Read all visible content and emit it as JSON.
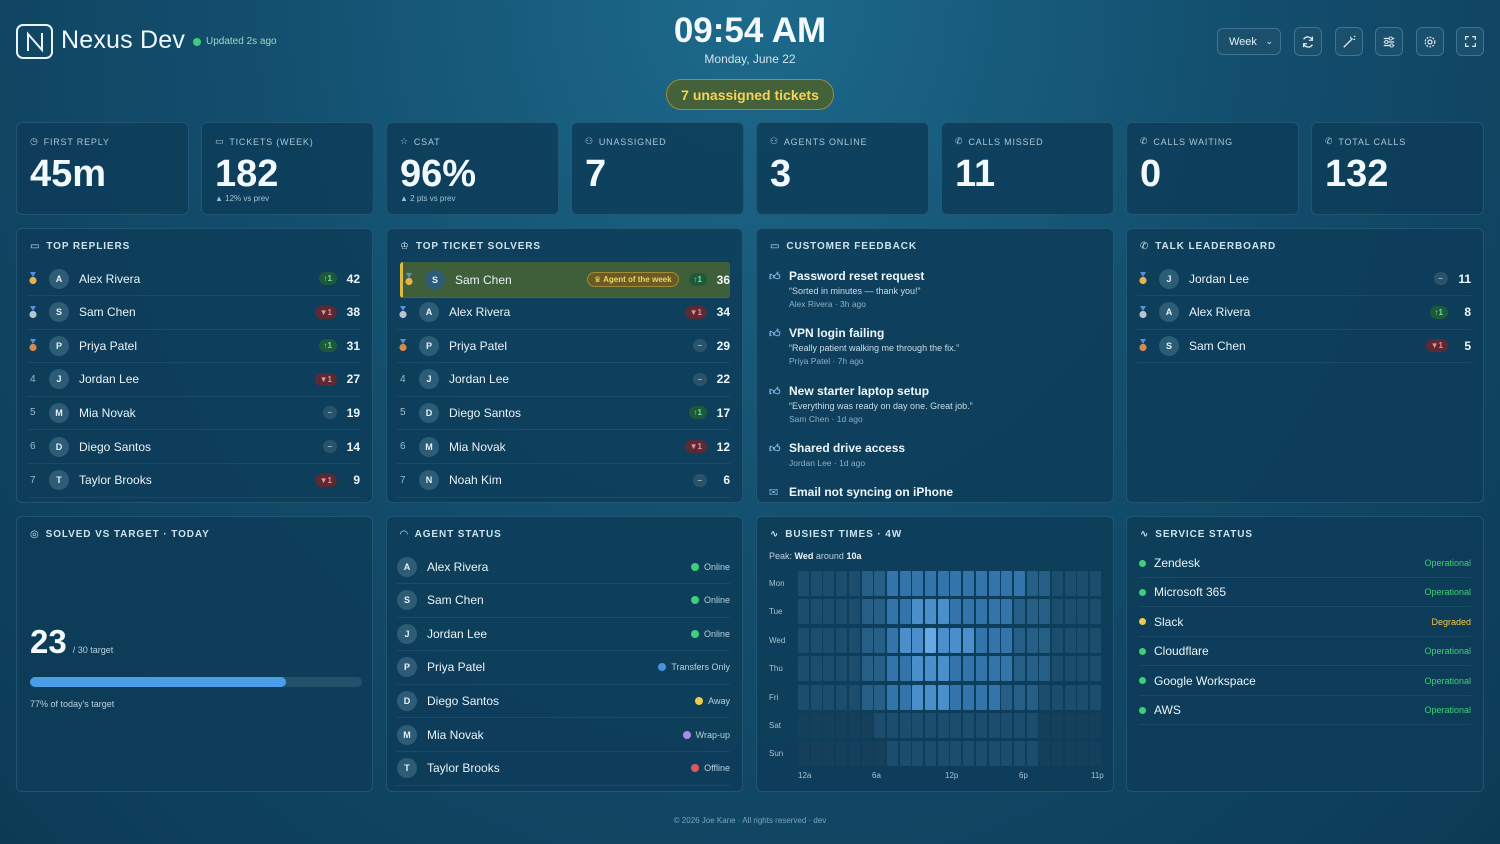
{
  "header": {
    "brand": "Nexus Dev",
    "updated": "Updated 2s ago",
    "clock": "09:54 AM",
    "date": "Monday, June 22",
    "unassigned_pill": "7 unassigned tickets",
    "range_select": "Week"
  },
  "icons": [
    "refresh-icon",
    "magic-wand-icon",
    "sliders-icon",
    "gear-icon",
    "fullscreen-icon"
  ],
  "kpis": [
    {
      "label": "FIRST REPLY",
      "value": "45m",
      "sub": ""
    },
    {
      "label": "TICKETS (WEEK)",
      "value": "182",
      "sub": "▲ 12% vs prev"
    },
    {
      "label": "CSAT",
      "value": "96%",
      "sub": "▲ 2 pts vs prev"
    },
    {
      "label": "UNASSIGNED",
      "value": "7",
      "sub": ""
    },
    {
      "label": "AGENTS ONLINE",
      "value": "3",
      "sub": ""
    },
    {
      "label": "CALLS MISSED",
      "value": "11",
      "sub": ""
    },
    {
      "label": "CALLS WAITING",
      "value": "0",
      "sub": ""
    },
    {
      "label": "TOTAL CALLS",
      "value": "132",
      "sub": ""
    }
  ],
  "top_repliers": {
    "title": "TOP REPLIERS",
    "rows": [
      {
        "rank": "1",
        "initial": "A",
        "name": "Alex Rivera",
        "trend": "↑1",
        "dir": "up",
        "count": "42"
      },
      {
        "rank": "2",
        "initial": "S",
        "name": "Sam Chen",
        "trend": "▼1",
        "dir": "dn",
        "count": "38"
      },
      {
        "rank": "3",
        "initial": "P",
        "name": "Priya Patel",
        "trend": "↑1",
        "dir": "up",
        "count": "31"
      },
      {
        "rank": "4",
        "initial": "J",
        "name": "Jordan Lee",
        "trend": "▼1",
        "dir": "dn",
        "count": "27"
      },
      {
        "rank": "5",
        "initial": "M",
        "name": "Mia Novak",
        "trend": "–",
        "dir": "eq",
        "count": "19"
      },
      {
        "rank": "6",
        "initial": "D",
        "name": "Diego Santos",
        "trend": "–",
        "dir": "eq",
        "count": "14"
      },
      {
        "rank": "7",
        "initial": "T",
        "name": "Taylor Brooks",
        "trend": "▼1",
        "dir": "dn",
        "count": "9"
      }
    ]
  },
  "top_solvers": {
    "title": "TOP TICKET SOLVERS",
    "badge": "Agent of the week",
    "rows": [
      {
        "rank": "1",
        "initial": "S",
        "name": "Sam Chen",
        "trend": "↑1",
        "dir": "up",
        "count": "36"
      },
      {
        "rank": "2",
        "initial": "A",
        "name": "Alex Rivera",
        "trend": "▼1",
        "dir": "dn",
        "count": "34"
      },
      {
        "rank": "3",
        "initial": "P",
        "name": "Priya Patel",
        "trend": "–",
        "dir": "eq",
        "count": "29"
      },
      {
        "rank": "4",
        "initial": "J",
        "name": "Jordan Lee",
        "trend": "–",
        "dir": "eq",
        "count": "22"
      },
      {
        "rank": "5",
        "initial": "D",
        "name": "Diego Santos",
        "trend": "↑1",
        "dir": "up",
        "count": "17"
      },
      {
        "rank": "6",
        "initial": "M",
        "name": "Mia Novak",
        "trend": "▼1",
        "dir": "dn",
        "count": "12"
      },
      {
        "rank": "7",
        "initial": "N",
        "name": "Noah Kim",
        "trend": "–",
        "dir": "eq",
        "count": "6"
      }
    ]
  },
  "feedback": {
    "title": "CUSTOMER FEEDBACK",
    "items": [
      {
        "title": "Password reset request",
        "quote": "“Sorted in minutes — thank you!”",
        "meta": "Alex Rivera · 3h ago"
      },
      {
        "title": "VPN login failing",
        "quote": "“Really patient walking me through the fix.”",
        "meta": "Priya Patel · 7h ago"
      },
      {
        "title": "New starter laptop setup",
        "quote": "“Everything was ready on day one. Great job.”",
        "meta": "Sam Chen · 1d ago"
      },
      {
        "title": "Shared drive access",
        "quote": "",
        "meta": "Jordan Lee · 1d ago"
      },
      {
        "title": "Email not syncing on iPhone",
        "quote": "",
        "meta": ""
      }
    ]
  },
  "talk": {
    "title": "TALK LEADERBOARD",
    "rows": [
      {
        "initial": "J",
        "name": "Jordan Lee",
        "trend": "–",
        "dir": "eq",
        "count": "11"
      },
      {
        "initial": "A",
        "name": "Alex Rivera",
        "trend": "↑1",
        "dir": "up",
        "count": "8"
      },
      {
        "initial": "S",
        "name": "Sam Chen",
        "trend": "▼1",
        "dir": "dn",
        "count": "5"
      }
    ]
  },
  "solved": {
    "title": "SOLVED VS TARGET · TODAY",
    "value": "23",
    "target": "/ 30 target",
    "progress": 0.77,
    "caption": "77% of today's target"
  },
  "agent_status": {
    "title": "AGENT STATUS",
    "rows": [
      {
        "initial": "A",
        "name": "Alex Rivera",
        "status": "Online",
        "color": "#3fcf7a"
      },
      {
        "initial": "S",
        "name": "Sam Chen",
        "status": "Online",
        "color": "#3fcf7a"
      },
      {
        "initial": "J",
        "name": "Jordan Lee",
        "status": "Online",
        "color": "#3fcf7a"
      },
      {
        "initial": "P",
        "name": "Priya Patel",
        "status": "Transfers Only",
        "color": "#4a90e2"
      },
      {
        "initial": "D",
        "name": "Diego Santos",
        "status": "Away",
        "color": "#f2c94c"
      },
      {
        "initial": "M",
        "name": "Mia Novak",
        "status": "Wrap-up",
        "color": "#a98be8"
      },
      {
        "initial": "T",
        "name": "Taylor Brooks",
        "status": "Offline",
        "color": "#e05a5a"
      }
    ]
  },
  "busiest": {
    "title": "BUSIEST TIMES · 4W",
    "peak_prefix": "Peak:",
    "peak_day": "Wed",
    "peak_mid": "around",
    "peak_hour": "10a",
    "days": [
      "Mon",
      "Tue",
      "Wed",
      "Thu",
      "Fri",
      "Sat",
      "Sun"
    ],
    "hour_labels": [
      "12a",
      "6a",
      "12p",
      "6p",
      "11p"
    ],
    "levels": [
      [
        1,
        1,
        1,
        1,
        1,
        2,
        2,
        3,
        3,
        3,
        3,
        3,
        3,
        3,
        3,
        3,
        3,
        3,
        2,
        2,
        1,
        1,
        1,
        1
      ],
      [
        1,
        1,
        1,
        1,
        1,
        2,
        2,
        3,
        3,
        4,
        4,
        4,
        3,
        3,
        3,
        3,
        3,
        2,
        2,
        2,
        1,
        1,
        1,
        1
      ],
      [
        1,
        1,
        1,
        1,
        1,
        2,
        2,
        3,
        4,
        4,
        5,
        4,
        4,
        4,
        3,
        3,
        3,
        2,
        2,
        2,
        1,
        1,
        1,
        1
      ],
      [
        1,
        1,
        1,
        1,
        1,
        2,
        2,
        3,
        3,
        4,
        4,
        4,
        3,
        3,
        3,
        3,
        3,
        2,
        2,
        2,
        1,
        1,
        1,
        1
      ],
      [
        1,
        1,
        1,
        1,
        1,
        2,
        2,
        3,
        3,
        4,
        4,
        4,
        3,
        3,
        3,
        3,
        2,
        2,
        2,
        1,
        1,
        1,
        1,
        1
      ],
      [
        0,
        0,
        0,
        0,
        0,
        0,
        1,
        1,
        1,
        1,
        1,
        1,
        1,
        1,
        1,
        1,
        1,
        1,
        1,
        0,
        0,
        0,
        0,
        0
      ],
      [
        0,
        0,
        0,
        0,
        0,
        0,
        0,
        1,
        1,
        1,
        1,
        1,
        1,
        1,
        1,
        1,
        1,
        1,
        1,
        0,
        0,
        0,
        0,
        0
      ]
    ]
  },
  "service": {
    "title": "SERVICE STATUS",
    "rows": [
      {
        "name": "Zendesk",
        "status": "Operational",
        "color": "#3fcf7a"
      },
      {
        "name": "Microsoft 365",
        "status": "Operational",
        "color": "#3fcf7a"
      },
      {
        "name": "Slack",
        "status": "Degraded",
        "color": "#f2c94c"
      },
      {
        "name": "Cloudflare",
        "status": "Operational",
        "color": "#3fcf7a"
      },
      {
        "name": "Google Workspace",
        "status": "Operational",
        "color": "#3fcf7a"
      },
      {
        "name": "AWS",
        "status": "Operational",
        "color": "#3fcf7a"
      }
    ]
  },
  "footer": "© 2026 Joe Kane · All rights reserved · dev",
  "colors": {
    "operational": "#3fcf7a",
    "degraded": "#f2c94c",
    "accent": "#4a9ee8"
  }
}
